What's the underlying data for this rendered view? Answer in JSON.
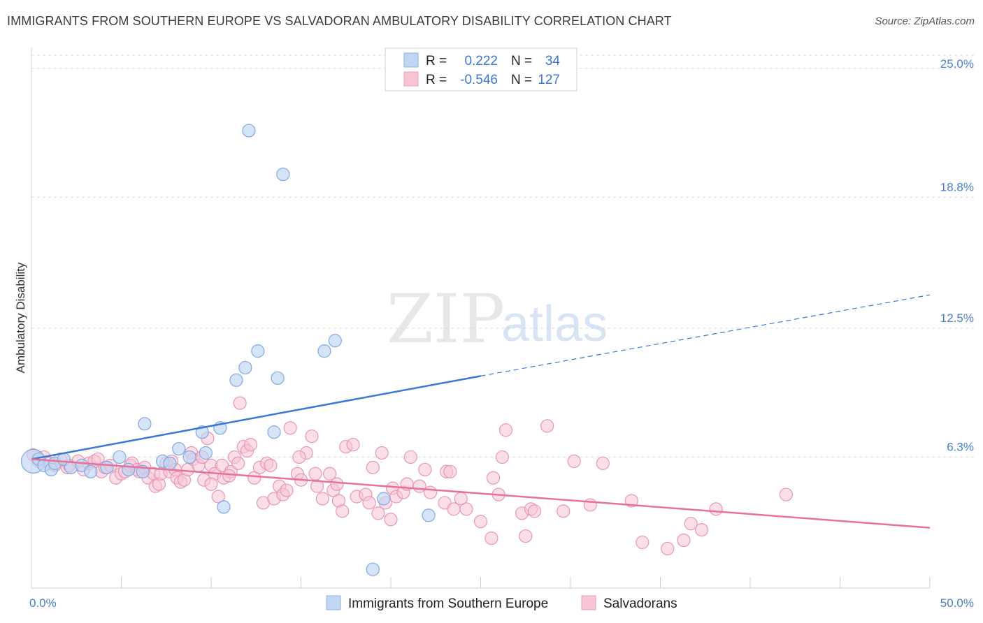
{
  "title": "IMMIGRANTS FROM SOUTHERN EUROPE VS SALVADORAN AMBULATORY DISABILITY CORRELATION CHART",
  "source": "Source: ZipAtlas.com",
  "watermark": {
    "zip": "ZIP",
    "atlas": "atlas"
  },
  "colors": {
    "blue": "#3a78d4",
    "blue_fill": "#c0d6f3",
    "pink": "#e8709a",
    "pink_fill": "#f7c5d6",
    "grid": "#dcdcdc",
    "tick_text": "#4a7fcf"
  },
  "legend": {
    "r_label": "R =",
    "n_label": "N =",
    "rows": [
      {
        "r": "0.222",
        "n": "34"
      },
      {
        "r": "-0.546",
        "n": "127"
      }
    ]
  },
  "bottom_legend": [
    "Immigrants from Southern Europe",
    "Salvadorans"
  ],
  "chart_data": {
    "type": "scatter",
    "title": "IMMIGRANTS FROM SOUTHERN EUROPE VS SALVADORAN AMBULATORY DISABILITY CORRELATION CHART",
    "xlabel": "",
    "ylabel": "Ambulatory Disability",
    "xlim": [
      0,
      50
    ],
    "ylim": [
      0,
      26
    ],
    "x_tick_labels": [
      "0.0%",
      "50.0%"
    ],
    "y_ticks": [
      6.3,
      12.5,
      18.8,
      25.0
    ],
    "y_tick_labels": [
      "6.3%",
      "12.5%",
      "18.8%",
      "25.0%"
    ],
    "grid": true,
    "legend_position": "top-center",
    "series": [
      {
        "name": "Immigrants from Southern Europe",
        "color": "#3a78d4",
        "r": 0.222,
        "n": 34,
        "trend": {
          "x0": 0,
          "y0": 6.2,
          "x1": 25,
          "y1": 10.2,
          "dashed_to_x": 50,
          "dashed_to_y": 14.1
        },
        "points": [
          [
            0.1,
            6.1
          ],
          [
            0.4,
            6.2
          ],
          [
            0.7,
            5.9
          ],
          [
            1.1,
            5.7
          ],
          [
            1.3,
            6.0
          ],
          [
            1.8,
            6.2
          ],
          [
            2.2,
            5.8
          ],
          [
            2.8,
            5.9
          ],
          [
            3.3,
            5.6
          ],
          [
            4.2,
            5.8
          ],
          [
            4.9,
            6.3
          ],
          [
            5.4,
            5.7
          ],
          [
            6.2,
            5.6
          ],
          [
            6.3,
            7.9
          ],
          [
            7.3,
            6.1
          ],
          [
            7.7,
            6.0
          ],
          [
            8.2,
            6.7
          ],
          [
            8.8,
            6.3
          ],
          [
            9.5,
            7.5
          ],
          [
            9.7,
            6.5
          ],
          [
            10.5,
            7.7
          ],
          [
            10.7,
            3.9
          ],
          [
            11.4,
            10.0
          ],
          [
            11.9,
            10.6
          ],
          [
            12.1,
            22.0
          ],
          [
            12.6,
            11.4
          ],
          [
            13.5,
            7.5
          ],
          [
            13.7,
            10.1
          ],
          [
            14.0,
            19.9
          ],
          [
            16.3,
            11.4
          ],
          [
            16.9,
            11.9
          ],
          [
            19.0,
            0.9
          ],
          [
            19.6,
            4.3
          ],
          [
            22.1,
            3.5
          ]
        ]
      },
      {
        "name": "Salvadorans",
        "color": "#e8709a",
        "r": -0.546,
        "n": 127,
        "trend": {
          "x0": 0,
          "y0": 6.2,
          "x1": 50,
          "y1": 2.9
        },
        "points": [
          [
            0.1,
            6.4
          ],
          [
            0.4,
            6.1
          ],
          [
            0.7,
            6.3
          ],
          [
            1.0,
            6.0
          ],
          [
            1.3,
            5.9
          ],
          [
            1.6,
            6.2
          ],
          [
            2.0,
            5.8
          ],
          [
            2.1,
            5.9
          ],
          [
            2.6,
            6.1
          ],
          [
            2.9,
            5.7
          ],
          [
            3.2,
            6.0
          ],
          [
            3.5,
            6.1
          ],
          [
            3.7,
            6.2
          ],
          [
            3.9,
            5.6
          ],
          [
            4.1,
            5.8
          ],
          [
            4.4,
            5.9
          ],
          [
            4.7,
            5.3
          ],
          [
            5.0,
            5.5
          ],
          [
            5.2,
            5.6
          ],
          [
            5.5,
            5.9
          ],
          [
            5.6,
            6.0
          ],
          [
            5.9,
            5.7
          ],
          [
            6.0,
            5.6
          ],
          [
            6.3,
            5.8
          ],
          [
            6.5,
            5.3
          ],
          [
            6.8,
            5.5
          ],
          [
            6.9,
            4.9
          ],
          [
            7.1,
            5.0
          ],
          [
            7.2,
            5.5
          ],
          [
            7.5,
            6.0
          ],
          [
            7.7,
            5.6
          ],
          [
            7.8,
            6.1
          ],
          [
            8.0,
            5.7
          ],
          [
            8.1,
            5.3
          ],
          [
            8.3,
            5.1
          ],
          [
            8.5,
            5.2
          ],
          [
            8.7,
            5.7
          ],
          [
            8.9,
            6.5
          ],
          [
            9.0,
            6.2
          ],
          [
            9.3,
            5.9
          ],
          [
            9.5,
            6.3
          ],
          [
            9.6,
            5.2
          ],
          [
            9.8,
            7.2
          ],
          [
            10.0,
            5.9
          ],
          [
            10.2,
            5.5
          ],
          [
            10.4,
            4.4
          ],
          [
            10.6,
            5.9
          ],
          [
            10.7,
            5.3
          ],
          [
            11.1,
            5.6
          ],
          [
            11.3,
            6.3
          ],
          [
            11.5,
            6.0
          ],
          [
            11.6,
            8.9
          ],
          [
            11.8,
            6.8
          ],
          [
            12.0,
            6.6
          ],
          [
            12.2,
            6.9
          ],
          [
            12.4,
            5.3
          ],
          [
            12.7,
            5.8
          ],
          [
            12.9,
            4.1
          ],
          [
            13.1,
            6.0
          ],
          [
            13.3,
            5.9
          ],
          [
            13.5,
            4.3
          ],
          [
            13.8,
            4.9
          ],
          [
            14.0,
            4.5
          ],
          [
            14.2,
            4.7
          ],
          [
            14.4,
            7.7
          ],
          [
            14.8,
            5.5
          ],
          [
            15.0,
            5.2
          ],
          [
            15.3,
            6.5
          ],
          [
            15.6,
            7.3
          ],
          [
            15.8,
            5.5
          ],
          [
            15.9,
            4.9
          ],
          [
            16.2,
            4.3
          ],
          [
            16.6,
            5.5
          ],
          [
            16.8,
            4.7
          ],
          [
            17.1,
            4.2
          ],
          [
            17.3,
            3.7
          ],
          [
            17.5,
            6.8
          ],
          [
            17.9,
            6.9
          ],
          [
            18.1,
            4.4
          ],
          [
            18.6,
            4.5
          ],
          [
            18.8,
            4.1
          ],
          [
            19.0,
            5.8
          ],
          [
            19.3,
            3.6
          ],
          [
            19.5,
            6.5
          ],
          [
            19.7,
            4.1
          ],
          [
            20.0,
            3.3
          ],
          [
            20.1,
            4.8
          ],
          [
            20.3,
            4.4
          ],
          [
            20.7,
            4.6
          ],
          [
            20.9,
            5.0
          ],
          [
            21.1,
            6.3
          ],
          [
            21.6,
            4.9
          ],
          [
            21.9,
            5.7
          ],
          [
            22.2,
            4.6
          ],
          [
            23.0,
            4.1
          ],
          [
            23.1,
            5.6
          ],
          [
            23.5,
            3.8
          ],
          [
            23.9,
            4.3
          ],
          [
            24.2,
            3.8
          ],
          [
            25.0,
            3.2
          ],
          [
            25.6,
            2.4
          ],
          [
            25.7,
            5.3
          ],
          [
            26.0,
            4.5
          ],
          [
            26.2,
            6.3
          ],
          [
            26.4,
            7.6
          ],
          [
            27.3,
            3.6
          ],
          [
            27.5,
            2.5
          ],
          [
            27.8,
            3.8
          ],
          [
            28.0,
            3.7
          ],
          [
            28.7,
            7.8
          ],
          [
            29.6,
            3.7
          ],
          [
            30.2,
            6.1
          ],
          [
            31.1,
            4.0
          ],
          [
            31.8,
            6.0
          ],
          [
            33.4,
            4.2
          ],
          [
            34.0,
            2.2
          ],
          [
            35.4,
            1.9
          ],
          [
            36.3,
            2.3
          ],
          [
            36.7,
            3.1
          ],
          [
            37.3,
            2.8
          ],
          [
            38.1,
            3.8
          ],
          [
            42.0,
            4.5
          ],
          [
            10.0,
            5.0
          ],
          [
            11.0,
            5.4
          ],
          [
            14.9,
            6.3
          ],
          [
            17.0,
            5.0
          ],
          [
            23.3,
            5.6
          ]
        ]
      }
    ]
  }
}
